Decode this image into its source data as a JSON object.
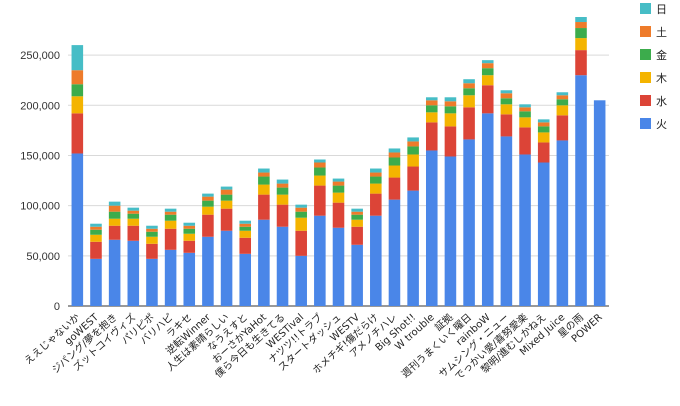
{
  "chart_data": {
    "type": "bar",
    "stacked": true,
    "title": "",
    "xlabel": "",
    "ylabel": "",
    "ylim": [
      0,
      290000
    ],
    "yticks": [
      0,
      50000,
      100000,
      150000,
      200000,
      250000
    ],
    "ytick_labels": [
      "0",
      "50,000",
      "100,000",
      "150,000",
      "200,000",
      "250,000"
    ],
    "grid": true,
    "legend_position": "right",
    "categories": [
      "ええじゃないか",
      "goWEST",
      "ジパング/夢を抱き",
      "ズットコイヴィズ",
      "パリピポ",
      "バリハピ",
      "ラキセ",
      "逆転Winner",
      "人生は素晴らしい",
      "なうえすと",
      "おーさかYaHot",
      "僕ら今日も生きてる",
      "WESTival",
      "ナツツ!!トラブ",
      "スタートダッシュ",
      "WESTV",
      "ホメチギ!傷だらけ",
      "アメノチハレ",
      "Big Shot!!",
      "W trouble",
      "証拠",
      "週刊うまくいく曜日",
      "rainboW",
      "サムシング・ニュー",
      "でっかい愛/喜努愛楽",
      "黎明/進むしかねえ",
      "Mixed Juice",
      "星の雨",
      "POWER"
    ],
    "series": [
      {
        "name": "火",
        "color": "#4a86e8",
        "values": [
          152000,
          47000,
          66000,
          65000,
          47000,
          56000,
          53000,
          69000,
          75000,
          52000,
          86000,
          79000,
          50000,
          90000,
          78000,
          61000,
          90000,
          106000,
          115000,
          155000,
          149000,
          166000,
          192000,
          169000,
          151000,
          143000,
          165000,
          230000,
          205000
        ]
      },
      {
        "name": "水",
        "color": "#dc4437",
        "values": [
          40000,
          17000,
          14000,
          15000,
          15000,
          21000,
          12000,
          22000,
          22000,
          16000,
          25000,
          22000,
          25000,
          30000,
          25000,
          18000,
          22000,
          22000,
          24000,
          28000,
          30000,
          32000,
          28000,
          22000,
          27000,
          20000,
          25000,
          25000,
          0
        ]
      },
      {
        "name": "木",
        "color": "#f4b400",
        "values": [
          17000,
          7000,
          7000,
          7000,
          7000,
          8000,
          7000,
          8000,
          8000,
          7000,
          10000,
          10000,
          13000,
          10000,
          10000,
          7000,
          10000,
          12000,
          12000,
          10000,
          13000,
          12000,
          10000,
          10000,
          10000,
          10000,
          10000,
          12000,
          0
        ]
      },
      {
        "name": "金",
        "color": "#3cac4c",
        "values": [
          12000,
          5000,
          7000,
          5000,
          5000,
          6000,
          5000,
          6000,
          6000,
          4000,
          8000,
          7000,
          6000,
          8000,
          7000,
          5000,
          7000,
          8000,
          8000,
          7000,
          7000,
          7000,
          7000,
          6000,
          6000,
          6000,
          6000,
          10000,
          0
        ]
      },
      {
        "name": "土",
        "color": "#ee7b2a",
        "values": [
          14000,
          3000,
          6000,
          3000,
          3000,
          3000,
          3000,
          4000,
          5000,
          3000,
          4000,
          4000,
          4000,
          5000,
          4000,
          3000,
          4000,
          5000,
          5000,
          5000,
          5000,
          5000,
          5000,
          5000,
          4000,
          4000,
          4000,
          6000,
          0
        ]
      },
      {
        "name": "日",
        "color": "#46bdc6",
        "values": [
          25000,
          3000,
          4000,
          3000,
          3000,
          3000,
          3000,
          3000,
          3000,
          3000,
          4000,
          4000,
          3000,
          3000,
          3000,
          3000,
          4000,
          4000,
          4000,
          3000,
          4000,
          4000,
          3000,
          3000,
          3000,
          3000,
          3000,
          5000,
          0
        ]
      }
    ],
    "legend_order": [
      "日",
      "土",
      "金",
      "木",
      "水",
      "火"
    ]
  }
}
